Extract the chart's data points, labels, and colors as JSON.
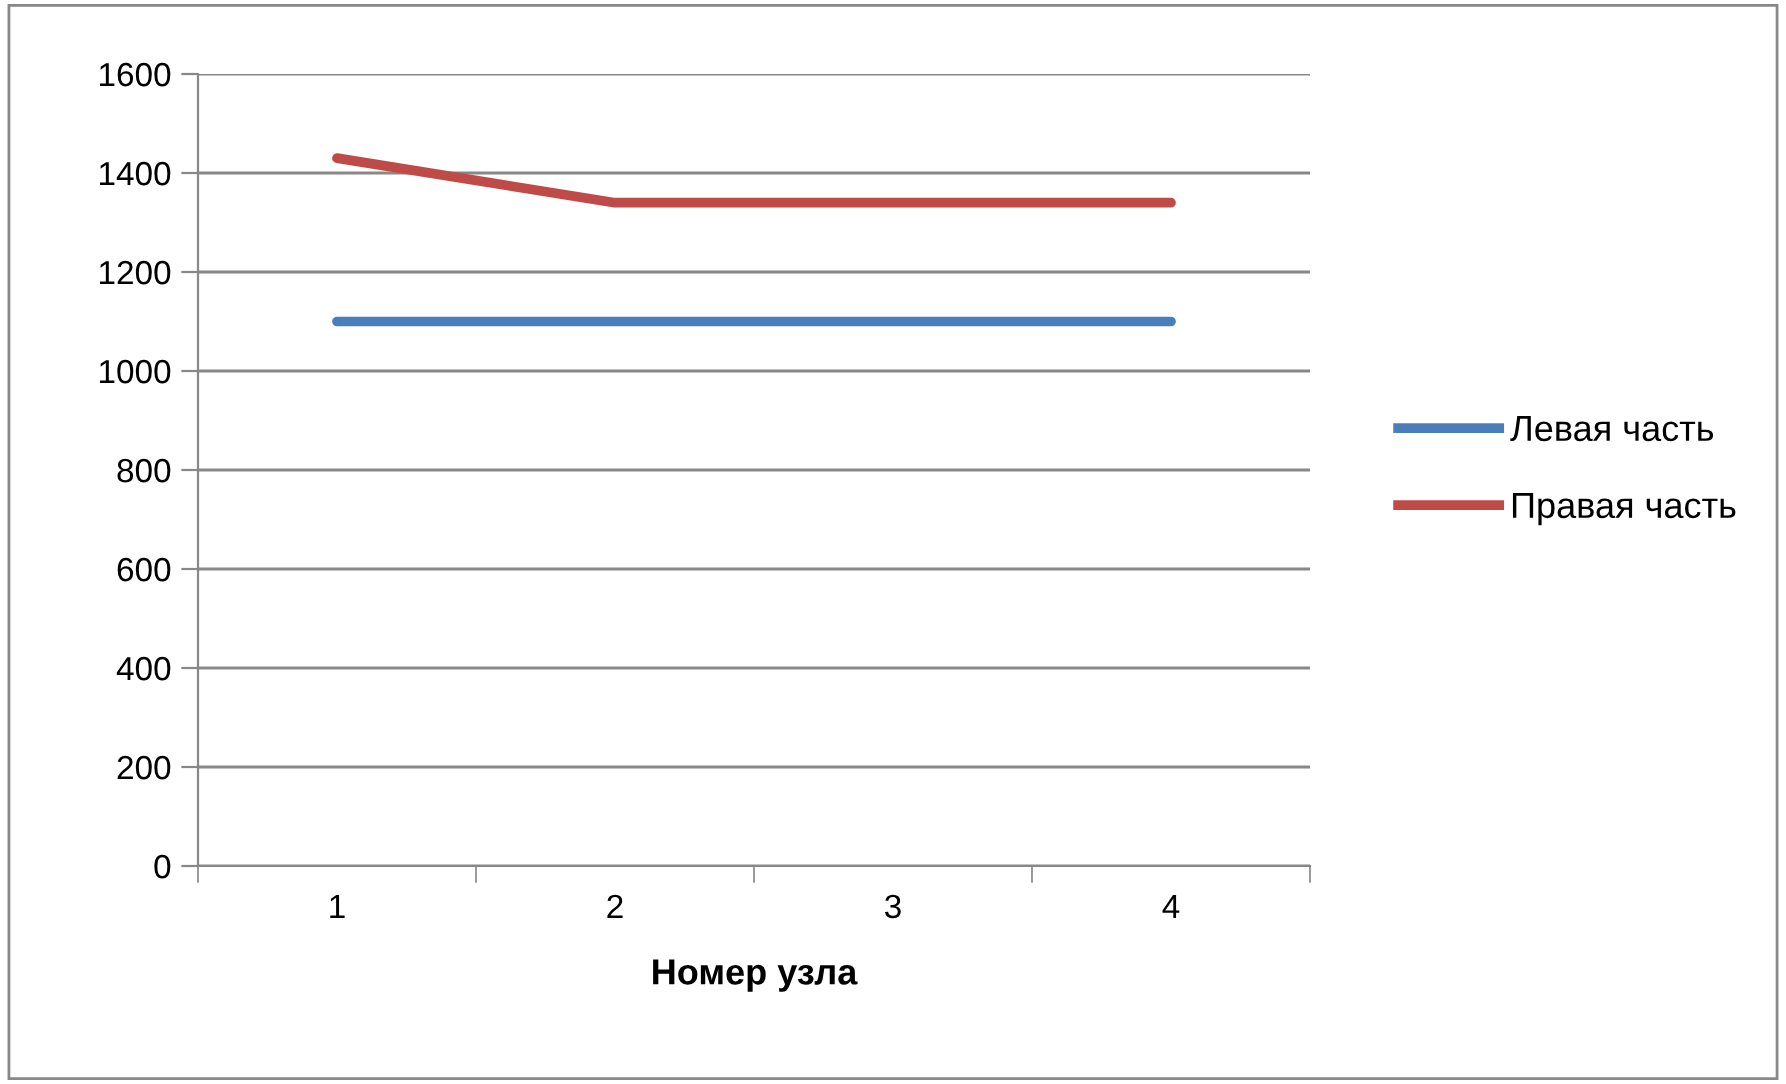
{
  "chart_data": {
    "type": "line",
    "xlabel": "Номер узла",
    "categories": [
      "1",
      "2",
      "3",
      "4"
    ],
    "series": [
      {
        "name": "Левая часть",
        "color": "#4a7ebb",
        "values": [
          1100,
          1100,
          1100,
          1100
        ]
      },
      {
        "name": "Правая часть",
        "color": "#be4b48",
        "values": [
          1430,
          1340,
          1340,
          1340
        ]
      }
    ],
    "ylim": [
      0,
      1600
    ],
    "yticks": [
      0,
      200,
      400,
      600,
      800,
      1000,
      1200,
      1400,
      1600
    ],
    "grid": "y",
    "legend": "right",
    "marker": "none",
    "line_style": "solid"
  }
}
